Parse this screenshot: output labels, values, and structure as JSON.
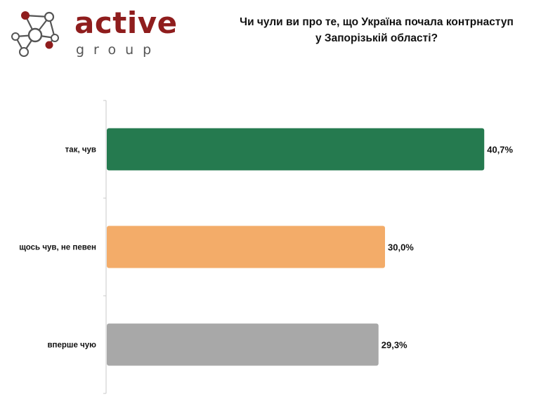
{
  "logo": {
    "word": "active",
    "sub": "group",
    "colors": {
      "primary": "#8f1d1d",
      "secondary": "#555555"
    },
    "icon": "network-molecule-icon"
  },
  "title_lines": [
    "Чи чули ви про те, що Україна почала контрнаступ",
    "у Запорізькій області?"
  ],
  "chart_data": {
    "type": "bar",
    "orientation": "horizontal",
    "categories": [
      "так, чув",
      "щось чув, не певен",
      "вперше чую"
    ],
    "values": [
      40.7,
      30.0,
      29.3
    ],
    "value_labels": [
      "40,7%",
      "30,0%",
      "29,3%"
    ],
    "colors": [
      "#257a4f",
      "#f3ac69",
      "#a8a8a8"
    ],
    "xlim": [
      0,
      100
    ],
    "grid": false,
    "legend": "none"
  }
}
